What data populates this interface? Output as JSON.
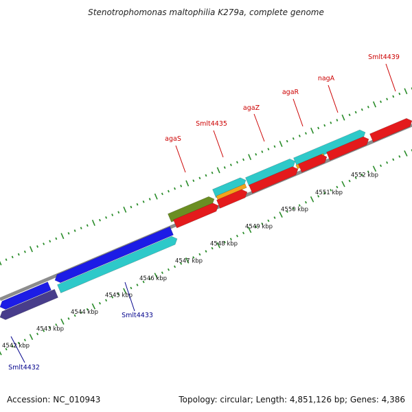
{
  "title": "Stenotrophomonas maltophilia K279a, complete genome",
  "footer": {
    "accession": "Accession: NC_010943",
    "topology": "Topology: circular; Length: 4,851,126 bp; Genes: 4,386"
  },
  "colors": {
    "backbone": "#8c8c8c",
    "tick": "#2a8c2a",
    "label_forward": "#cc0000",
    "label_reverse": "#00008b",
    "red": "#e41a1c",
    "teal": "#2ec9c9",
    "orange": "#f2a31c",
    "olive": "#6b8e23",
    "blue": "#1c1ce6",
    "navy": "#483d8b"
  },
  "kbp_ticks": [
    {
      "label": "4542 kbp"
    },
    {
      "label": "4543 kbp"
    },
    {
      "label": "4544 kbp"
    },
    {
      "label": "4545 kbp"
    },
    {
      "label": "4546 kbp"
    },
    {
      "label": "4547 kbp"
    },
    {
      "label": "4548 kbp"
    },
    {
      "label": "4549 kbp"
    },
    {
      "label": "4550 kbp"
    },
    {
      "label": "4551 kbp"
    },
    {
      "label": "4552 kbp"
    }
  ],
  "gene_labels": [
    {
      "text": "agaS",
      "strand": "forward"
    },
    {
      "text": "Smlt4435",
      "strand": "forward"
    },
    {
      "text": "agaZ",
      "strand": "forward"
    },
    {
      "text": "agaR",
      "strand": "forward"
    },
    {
      "text": "nagA",
      "strand": "forward"
    },
    {
      "text": "Smlt4439",
      "strand": "forward"
    },
    {
      "text": "Smlt4433",
      "strand": "reverse"
    },
    {
      "text": "Smlt4432",
      "strand": "reverse"
    }
  ],
  "features": [
    {
      "name": "gene-navy",
      "color": "navy"
    },
    {
      "name": "gene-blue-lower",
      "color": "blue"
    },
    {
      "name": "gene-teal-lower",
      "color": "teal"
    },
    {
      "name": "gene-blue-upper",
      "color": "blue"
    },
    {
      "name": "gene-olive-agaS",
      "color": "olive"
    },
    {
      "name": "gene-red-agaS",
      "color": "red"
    },
    {
      "name": "gene-teal-Smlt4435",
      "color": "teal"
    },
    {
      "name": "gene-orange-Smlt4435",
      "color": "orange"
    },
    {
      "name": "gene-red-Smlt4435",
      "color": "red"
    },
    {
      "name": "gene-teal-agaZ",
      "color": "teal"
    },
    {
      "name": "gene-red-agaZ",
      "color": "red"
    },
    {
      "name": "gene-teal-agaR",
      "color": "teal"
    },
    {
      "name": "gene-orange-agaR",
      "color": "orange"
    },
    {
      "name": "gene-red-agaR",
      "color": "red"
    },
    {
      "name": "gene-red-nagA",
      "color": "red"
    },
    {
      "name": "gene-red-Smlt4439",
      "color": "red"
    }
  ]
}
